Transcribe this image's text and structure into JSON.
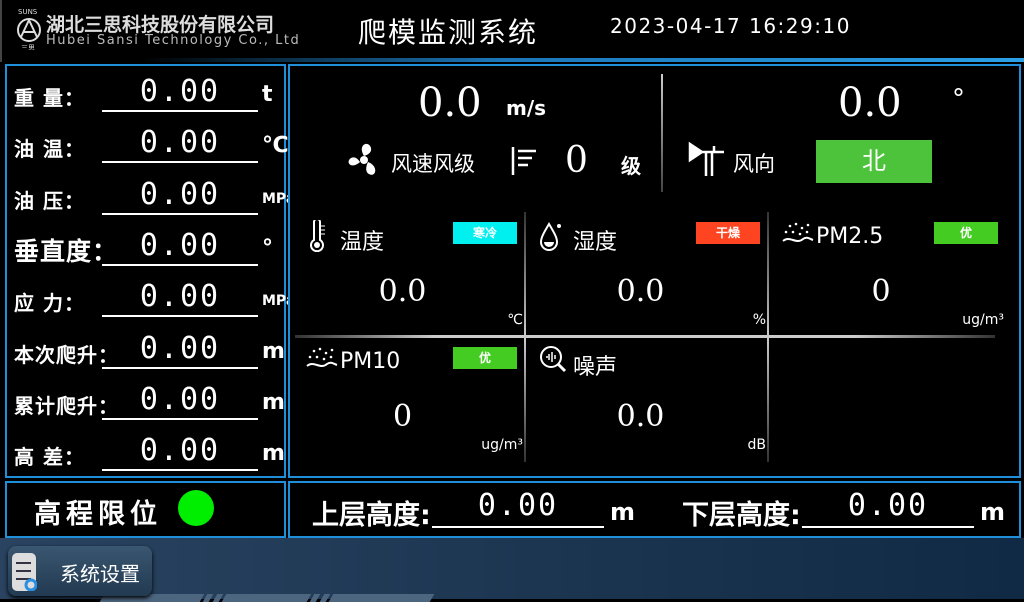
{
  "header": {
    "logo_mark": "SUNS 三思",
    "company_cn": "湖北三思科技股份有限公司",
    "company_en": "Hubei Sansi Technology Co., Ltd",
    "title": "爬模监测系统",
    "datetime": "2023-04-17 16:29:10"
  },
  "left": {
    "rows": [
      {
        "label": "重  量：",
        "value": "0.00",
        "unit": "t"
      },
      {
        "label": "油  温：",
        "value": "0.00",
        "unit": "℃"
      },
      {
        "label": "油  压：",
        "value": "0.00",
        "unit": "MPa"
      },
      {
        "label": "垂直度：",
        "value": "0.00",
        "unit": "°"
      },
      {
        "label": "应  力：",
        "value": "0.00",
        "unit": "MPa"
      },
      {
        "label": "本次爬升：",
        "value": "0.00",
        "unit": "m"
      },
      {
        "label": "累计爬升：",
        "value": "0.00",
        "unit": "m"
      },
      {
        "label": "高  差：",
        "value": "0.00",
        "unit": "m"
      }
    ]
  },
  "wind": {
    "speed": "0.0",
    "speed_unit": "m/s",
    "speed_label": "风速风级",
    "level": "0",
    "level_unit": "级",
    "direction_deg": "0.0",
    "deg_unit": "°",
    "direction_label": "风向",
    "direction": "北",
    "direction_color": "#4cc33a"
  },
  "cells": [
    {
      "title": "温度",
      "badge": "寒冷",
      "badge_color": "#00f0f0",
      "value": "0.0",
      "unit": "℃",
      "icon": "thermometer-icon"
    },
    {
      "title": "湿度",
      "badge": "干燥",
      "badge_color": "#ff4422",
      "value": "0.0",
      "unit": "%",
      "icon": "droplet-icon"
    },
    {
      "title": "PM2.5",
      "badge": "优",
      "badge_color": "#44cc22",
      "value": "0",
      "unit": "ug/m³",
      "icon": "dust-icon"
    },
    {
      "title": "PM10",
      "badge": "优",
      "badge_color": "#44cc22",
      "value": "0",
      "unit": "ug/m³",
      "icon": "dust-icon"
    },
    {
      "title": "噪声",
      "value": "0.0",
      "unit": "dB",
      "icon": "noise-icon"
    }
  ],
  "limit": {
    "label": "高程限位",
    "status_color": "#00ee00"
  },
  "heights": {
    "upper_label": "上层高度:",
    "upper_value": "0.00",
    "upper_unit": "m",
    "lower_label": "下层高度:",
    "lower_value": "0.00",
    "lower_unit": "m"
  },
  "footer": {
    "settings_label": "系统设置"
  }
}
